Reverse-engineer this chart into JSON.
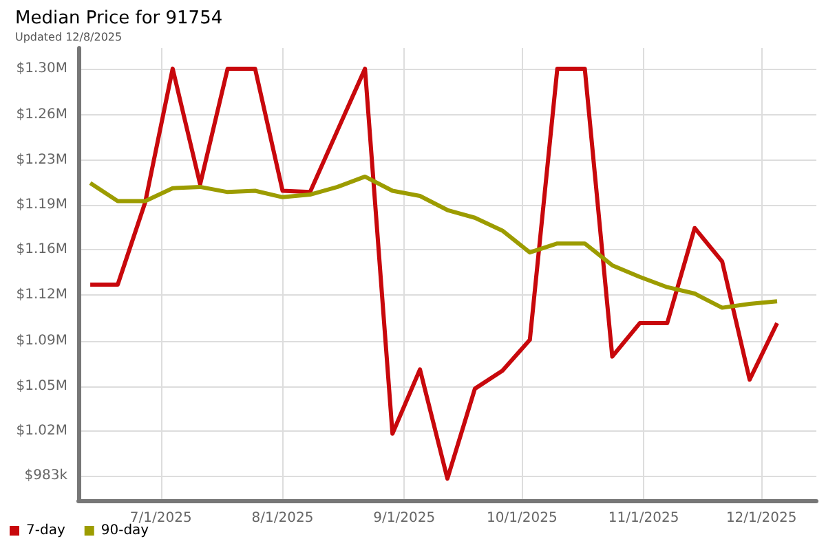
{
  "chart_data": {
    "type": "line",
    "title": "Median Price for 91754",
    "subtitle": "Updated 12/8/2025",
    "x": [
      "2025-06-13",
      "2025-06-20",
      "2025-06-27",
      "2025-07-04",
      "2025-07-11",
      "2025-07-18",
      "2025-07-25",
      "2025-08-01",
      "2025-08-08",
      "2025-08-15",
      "2025-08-22",
      "2025-08-29",
      "2025-09-05",
      "2025-09-12",
      "2025-09-19",
      "2025-09-26",
      "2025-10-03",
      "2025-10-10",
      "2025-10-17",
      "2025-10-24",
      "2025-10-31",
      "2025-11-07",
      "2025-11-14",
      "2025-11-21",
      "2025-11-28",
      "2025-12-05"
    ],
    "series": [
      {
        "name": "7-day",
        "color": "#c8080c",
        "values": [
          1132000,
          1132000,
          1196000,
          1300000,
          1210000,
          1300000,
          1300000,
          1205000,
          1204000,
          1252000,
          1300000,
          1016000,
          1066000,
          981000,
          1051000,
          1065000,
          1089000,
          1300000,
          1300000,
          1076000,
          1102000,
          1102000,
          1176000,
          1150000,
          1058000,
          1102000
        ]
      },
      {
        "name": "90-day",
        "color": "#9c9c00",
        "values": [
          1211000,
          1197000,
          1197000,
          1207000,
          1208000,
          1204000,
          1205000,
          1200000,
          1202000,
          1208000,
          1216000,
          1205000,
          1201000,
          1190000,
          1184000,
          1174000,
          1157000,
          1164000,
          1164000,
          1147000,
          1138000,
          1130000,
          1125000,
          1114000,
          1117000,
          1119000
        ]
      }
    ],
    "xlim": [
      "2025-06-10",
      "2025-12-15"
    ],
    "xticks": [
      {
        "value": "2025-07-01",
        "label": "7/1/2025"
      },
      {
        "value": "2025-08-01",
        "label": "8/1/2025"
      },
      {
        "value": "2025-09-01",
        "label": "9/1/2025"
      },
      {
        "value": "2025-10-01",
        "label": "10/1/2025"
      },
      {
        "value": "2025-11-01",
        "label": "11/1/2025"
      },
      {
        "value": "2025-12-01",
        "label": "12/1/2025"
      }
    ],
    "ylim": [
      964000,
      1316000
    ],
    "yticks": [
      {
        "value": 983000,
        "label": "$983k"
      },
      {
        "value": 1018000,
        "label": "$1.02M"
      },
      {
        "value": 1053000,
        "label": "$1.05M"
      },
      {
        "value": 1088000,
        "label": "$1.09M"
      },
      {
        "value": 1124000,
        "label": "$1.12M"
      },
      {
        "value": 1159000,
        "label": "$1.16M"
      },
      {
        "value": 1194000,
        "label": "$1.19M"
      },
      {
        "value": 1229000,
        "label": "$1.23M"
      },
      {
        "value": 1264000,
        "label": "$1.26M"
      },
      {
        "value": 1300000,
        "label": "$1.30M"
      }
    ],
    "grid": true,
    "legend": "bottom left",
    "marker": "none",
    "line_style": "solid"
  }
}
